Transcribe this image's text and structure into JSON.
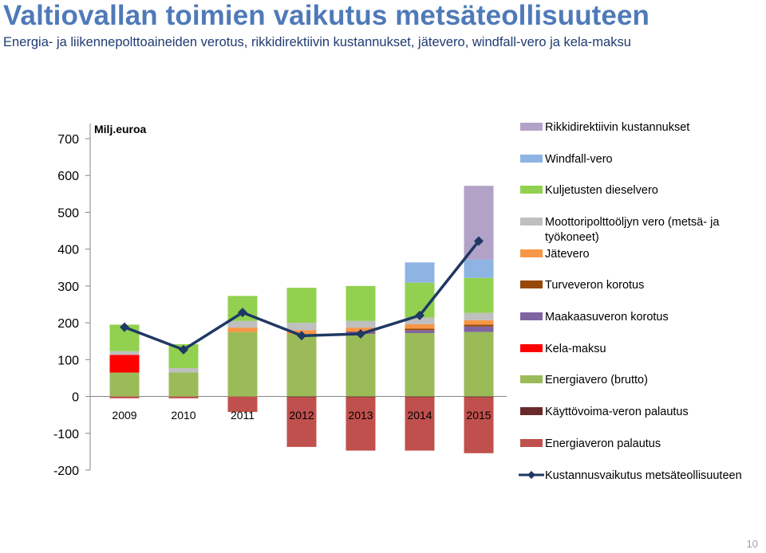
{
  "header": {
    "title": "Valtiovallan toimien vaikutus metsäteollisuuteen",
    "subtitle": "Energia- ja liikennepolttoaineiden verotus, rikkidirektiivin kustannukset, jätevero, windfall-vero ja kela-maksu"
  },
  "page_number": "10",
  "chart_data": {
    "type": "bar",
    "stacked": true,
    "unit_label": "Milj.euroa",
    "categories": [
      "2009",
      "2010",
      "2011",
      "2012",
      "2013",
      "2014",
      "2015"
    ],
    "yticks": [
      "700",
      "600",
      "500",
      "400",
      "300",
      "200",
      "100",
      "0",
      "-100",
      "-200"
    ],
    "ylim": [
      -200,
      700
    ],
    "grid": false,
    "legend_position": "right",
    "series": [
      {
        "name": "Käyttövoima-veron palautus",
        "color": "#6b2a2a",
        "values": [
          0,
          0,
          0,
          -2,
          -2,
          -2,
          -2
        ]
      },
      {
        "name": "Energiaveron palautus",
        "color": "#c0504d",
        "values": [
          -5,
          -5,
          -42,
          -135,
          -145,
          -145,
          -152
        ]
      },
      {
        "name": "Energiavero (brutto)",
        "color": "#9bbb59",
        "values": [
          65,
          65,
          175,
          170,
          170,
          172,
          175
        ]
      },
      {
        "name": "Kela-maksu",
        "color": "#ff0000",
        "values": [
          48,
          0,
          0,
          0,
          0,
          0,
          0
        ]
      },
      {
        "name": "Maakaasuveron korotus",
        "color": "#8064a2",
        "values": [
          0,
          0,
          0,
          0,
          5,
          8,
          15
        ]
      },
      {
        "name": "Turveveron korotus",
        "color": "#974706",
        "values": [
          0,
          0,
          0,
          0,
          2,
          4,
          5
        ]
      },
      {
        "name": "Jätevero",
        "color": "#f79646",
        "values": [
          0,
          0,
          12,
          10,
          10,
          12,
          12
        ]
      },
      {
        "name": "Moottoripolttoöljyn vero (metsä- ja työkoneet)",
        "color": "#bfbfbf",
        "values": [
          10,
          12,
          18,
          20,
          18,
          18,
          20
        ]
      },
      {
        "name": "Kuljetusten dieselvero",
        "color": "#92d050",
        "values": [
          72,
          65,
          68,
          95,
          95,
          95,
          95
        ]
      },
      {
        "name": "Windfall-vero",
        "color": "#8db4e2",
        "values": [
          0,
          0,
          0,
          0,
          0,
          55,
          50
        ]
      },
      {
        "name": "Rikkidirektiivin kustannukset",
        "color": "#b3a2c7",
        "values": [
          0,
          0,
          0,
          0,
          0,
          0,
          200
        ]
      }
    ],
    "line": {
      "name": "Kustannusvaikutus metsäteollisuuteen",
      "color": "#1f3864",
      "values": [
        188,
        127,
        228,
        165,
        170,
        220,
        422
      ]
    },
    "legend_order": [
      "Rikkidirektiivin kustannukset",
      "Windfall-vero",
      "Kuljetusten dieselvero",
      "Moottoripolttoöljyn vero (metsä- ja työkoneet)",
      "Jätevero",
      "Turveveron korotus",
      "Maakaasuveron korotus",
      "Kela-maksu",
      "Energiavero (brutto)",
      "Käyttövoima-veron palautus",
      "Energiaveron palautus",
      "Kustannusvaikutus metsäteollisuuteen"
    ]
  }
}
